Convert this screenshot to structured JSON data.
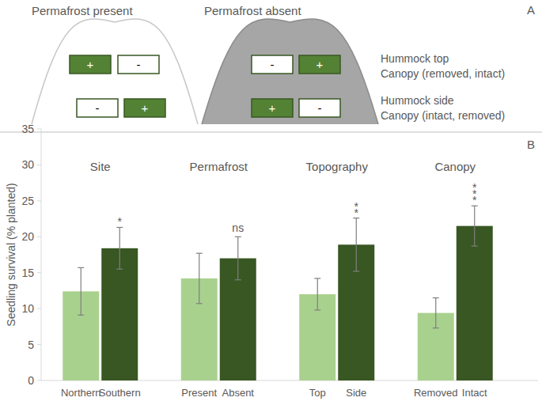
{
  "diagram": {
    "panel_label": "A",
    "hummocks": [
      {
        "title": "Permafrost present",
        "boxes": [
          [
            "+",
            "-"
          ],
          [
            "-",
            "+"
          ]
        ]
      },
      {
        "title": "Permafrost absent",
        "boxes": [
          [
            "-",
            "+"
          ],
          [
            "+",
            "-"
          ]
        ]
      }
    ],
    "rows": [
      {
        "label": "Hummock top",
        "sublabel": "Canopy (removed, intact)"
      },
      {
        "label": "Hummock side",
        "sublabel": "Canopy (intact, removed)"
      }
    ]
  },
  "chart_data": {
    "type": "bar",
    "panel_label": "B",
    "y_label": "Seedling survival (% planted)",
    "ylim": [
      0,
      35
    ],
    "yticks": [
      0,
      5,
      10,
      15,
      20,
      25,
      30,
      35
    ],
    "grid": false,
    "groups": [
      {
        "title": "Site",
        "annotation": "*",
        "categories": [
          "Northern",
          "Southern"
        ],
        "values": [
          12.4,
          18.4
        ],
        "errors": [
          3.3,
          2.9
        ],
        "colors": [
          "#a9d18e",
          "#385723"
        ]
      },
      {
        "title": "Permafrost",
        "annotation": "ns",
        "categories": [
          "Present",
          "Absent"
        ],
        "values": [
          14.2,
          17.0
        ],
        "errors": [
          3.5,
          3.0
        ],
        "colors": [
          "#a9d18e",
          "#385723"
        ]
      },
      {
        "title": "Topography",
        "annotation": "**",
        "categories": [
          "Top",
          "Side"
        ],
        "values": [
          12.0,
          18.9
        ],
        "errors": [
          2.2,
          3.7
        ],
        "colors": [
          "#a9d18e",
          "#385723"
        ]
      },
      {
        "title": "Canopy",
        "annotation": "***",
        "categories": [
          "Removed",
          "Intact"
        ],
        "values": [
          9.4,
          21.5
        ],
        "errors": [
          2.1,
          2.8
        ],
        "colors": [
          "#a9d18e",
          "#385723"
        ]
      }
    ]
  }
}
